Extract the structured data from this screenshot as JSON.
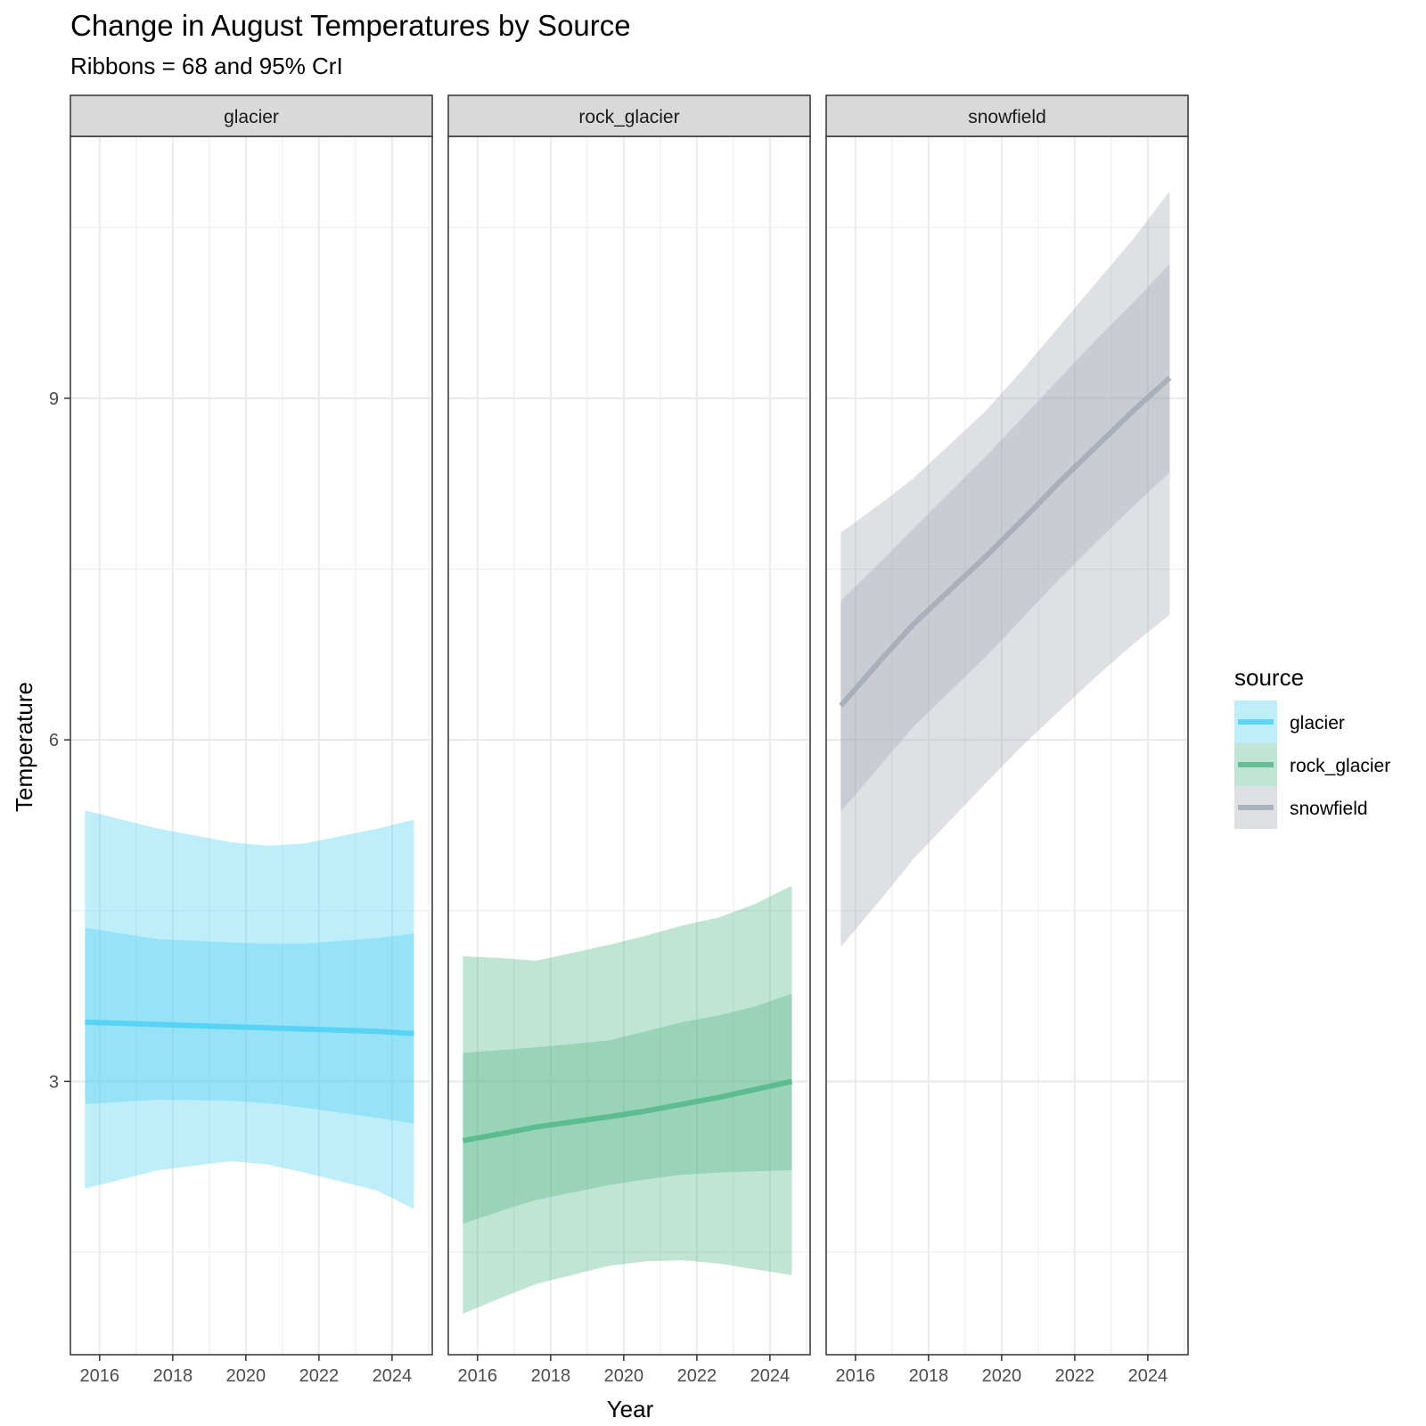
{
  "chart_data": {
    "type": "line",
    "title": "Change in August Temperatures by Source",
    "subtitle": "Ribbons = 68 and 95% CrI",
    "xlabel": "Year",
    "ylabel": "Temperature",
    "xlim": [
      2015.2,
      2025.1
    ],
    "ylim": [
      0.6,
      11.3
    ],
    "x_ticks": [
      2016,
      2018,
      2020,
      2022,
      2024
    ],
    "y_ticks": [
      3,
      6,
      9
    ],
    "y_minor_ticks": [
      1.5,
      4.5,
      7.5,
      10.5
    ],
    "grid": true,
    "legend_title": "source",
    "legend_position": "right",
    "panels": [
      {
        "name": "glacier",
        "color": "#4dcff5",
        "x": [
          2015.6,
          2017.6,
          2019.6,
          2020.6,
          2021.6,
          2023.6,
          2024.6
        ],
        "mean": [
          3.52,
          3.5,
          3.48,
          3.47,
          3.46,
          3.44,
          3.42
        ],
        "lower68": [
          2.8,
          2.84,
          2.83,
          2.81,
          2.77,
          2.68,
          2.63
        ],
        "upper68": [
          4.35,
          4.25,
          4.22,
          4.21,
          4.21,
          4.26,
          4.3
        ],
        "lower95": [
          2.06,
          2.22,
          2.3,
          2.27,
          2.2,
          2.04,
          1.88
        ],
        "upper95": [
          5.38,
          5.22,
          5.1,
          5.07,
          5.09,
          5.22,
          5.3
        ]
      },
      {
        "name": "rock_glacier",
        "color": "#52b788",
        "x": [
          2015.6,
          2016.8,
          2017.6,
          2019.6,
          2020.6,
          2021.6,
          2022.6,
          2023.6,
          2024.6
        ],
        "mean": [
          2.48,
          2.55,
          2.6,
          2.69,
          2.74,
          2.8,
          2.86,
          2.93,
          3.0
        ],
        "lower68": [
          1.75,
          1.88,
          1.96,
          2.09,
          2.14,
          2.18,
          2.2,
          2.21,
          2.22
        ],
        "upper68": [
          3.25,
          3.28,
          3.3,
          3.36,
          3.44,
          3.52,
          3.58,
          3.66,
          3.77
        ],
        "lower95": [
          0.96,
          1.12,
          1.22,
          1.38,
          1.42,
          1.43,
          1.4,
          1.35,
          1.3
        ],
        "upper95": [
          4.1,
          4.08,
          4.06,
          4.2,
          4.28,
          4.37,
          4.44,
          4.56,
          4.72
        ]
      },
      {
        "name": "snowfield",
        "color": "#a3aab5",
        "x": [
          2015.6,
          2016.8,
          2017.6,
          2019.6,
          2020.6,
          2021.6,
          2022.6,
          2023.6,
          2024.6
        ],
        "mean": [
          6.3,
          6.74,
          7.02,
          7.62,
          7.94,
          8.27,
          8.58,
          8.89,
          9.18
        ],
        "lower68": [
          5.37,
          5.82,
          6.12,
          6.74,
          7.08,
          7.42,
          7.74,
          8.05,
          8.35
        ],
        "upper68": [
          7.22,
          7.6,
          7.86,
          8.5,
          8.84,
          9.18,
          9.52,
          9.84,
          10.18
        ],
        "lower95": [
          4.18,
          4.64,
          4.96,
          5.63,
          5.96,
          6.26,
          6.56,
          6.84,
          7.1
        ],
        "upper95": [
          7.82,
          8.1,
          8.3,
          8.9,
          9.26,
          9.64,
          10.02,
          10.4,
          10.82
        ]
      }
    ]
  }
}
